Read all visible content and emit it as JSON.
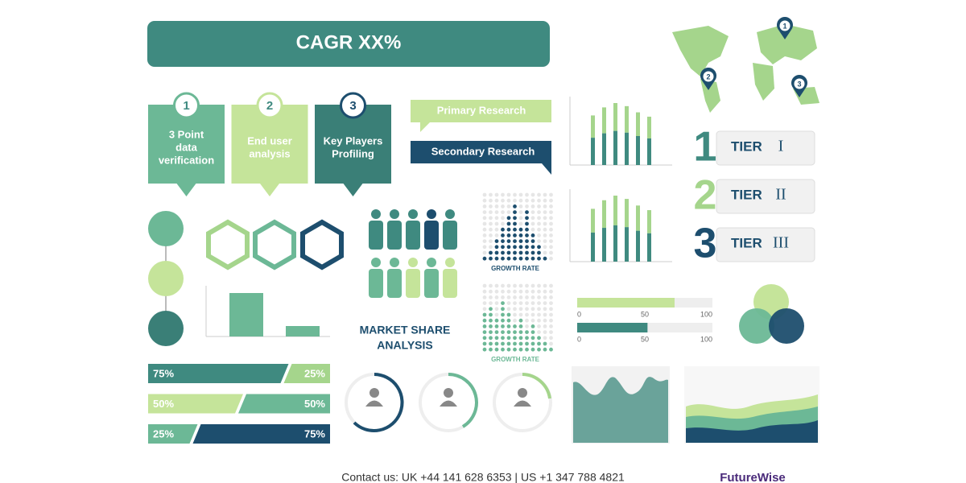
{
  "banner": "CAGR XX%",
  "steps": [
    {
      "number": "1",
      "lines": [
        "3 Point",
        "data",
        "verification"
      ],
      "color": "#6cb896"
    },
    {
      "number": "2",
      "lines": [
        "End user",
        "analysis"
      ],
      "color": "#c5e49a"
    },
    {
      "number": "3",
      "lines": [
        "Key Players",
        "Profiling"
      ],
      "color": "#3a7f77"
    }
  ],
  "research": [
    "Primary Research",
    "Secondary Research"
  ],
  "map_pins": [
    "1",
    "2",
    "3"
  ],
  "tiers": [
    {
      "number": "1",
      "word": "TIER",
      "numeral": "I",
      "color": "#3f8a80"
    },
    {
      "number": "2",
      "word": "TIER",
      "numeral": "II",
      "color": "#a5d58c"
    },
    {
      "number": "3",
      "word": "TIER",
      "numeral": "III",
      "color": "#1d4e6e"
    }
  ],
  "growth_rate_labels": [
    "GROWTH RATE",
    "GROWTH RATE"
  ],
  "market_share": [
    "MARKET SHARE",
    "ANALYSIS"
  ],
  "share_bars": [
    {
      "left": {
        "value": 75,
        "label": "75%",
        "color": "#3f8a80"
      },
      "right": {
        "value": 25,
        "label": "25%",
        "color": "#a5d58c"
      }
    },
    {
      "left": {
        "value": 50,
        "label": "50%",
        "color": "#c5e49a"
      },
      "right": {
        "value": 50,
        "label": "50%",
        "color": "#6cb896"
      }
    },
    {
      "left": {
        "value": 25,
        "label": "25%",
        "color": "#6cb896"
      },
      "right": {
        "value": 75,
        "label": "75%",
        "color": "#1d4e6e"
      }
    }
  ],
  "progress": {
    "ticks": [
      0,
      50,
      100
    ],
    "values": [
      72,
      52
    ],
    "colors": [
      "#c5e49a",
      "#3f8a80"
    ]
  },
  "footer": "Contact us: UK +44 141 628 6353 | US +1 347 788 4821",
  "brand": "FutureWise"
}
